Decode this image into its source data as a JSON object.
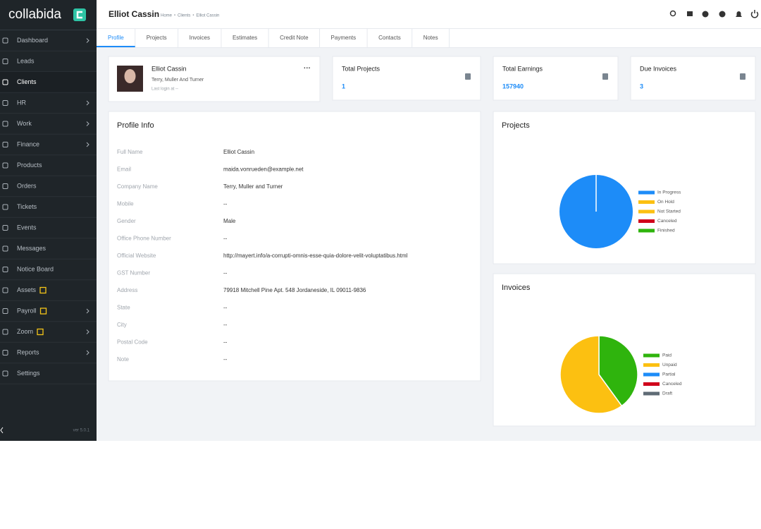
{
  "sidebar": {
    "brand": "collabida",
    "menu": [
      {
        "label": "Dashboard",
        "expandable": true
      },
      {
        "label": "Leads"
      },
      {
        "label": "Clients",
        "active": true
      },
      {
        "label": "HR",
        "expandable": true
      },
      {
        "label": "Work",
        "expandable": true
      },
      {
        "label": "Finance",
        "expandable": true
      },
      {
        "label": "Products"
      },
      {
        "label": "Orders"
      },
      {
        "label": "Tickets"
      },
      {
        "label": "Events"
      },
      {
        "label": "Messages"
      },
      {
        "label": "Notice Board"
      },
      {
        "label": "Assets",
        "badge": "gift"
      },
      {
        "label": "Payroll",
        "badge": "gift",
        "expandable": true
      },
      {
        "label": "Zoom",
        "badge": "gift",
        "expandable": true
      },
      {
        "label": "Reports",
        "expandable": true
      },
      {
        "label": "Settings"
      }
    ],
    "version": "ver 5.0.1"
  },
  "header": {
    "title": "Elliot Cassin",
    "breadcrumb": [
      "Home",
      "Clients",
      "Elliot Cassin"
    ]
  },
  "tabs": [
    "Profile",
    "Projects",
    "Invoices",
    "Estimates",
    "Credit Note",
    "Payments",
    "Contacts",
    "Notes"
  ],
  "client_card": {
    "name": "Elliot Cassin",
    "company": "Terry, Muller And Turner",
    "last_login": "Last login at --"
  },
  "stats": [
    {
      "label": "Total Projects",
      "value": 1
    },
    {
      "label": "Total Earnings",
      "value": 157940
    },
    {
      "label": "Due Invoices",
      "value": 3
    }
  ],
  "profile_info": {
    "title": "Profile Info",
    "fields": [
      {
        "label": "Full Name",
        "value": "Elliot Cassin"
      },
      {
        "label": "Email",
        "value": "maida.vonrueden@example.net"
      },
      {
        "label": "Company Name",
        "value": "Terry, Muller and Turner"
      },
      {
        "label": "Mobile",
        "value": "--"
      },
      {
        "label": "Gender",
        "value": "Male"
      },
      {
        "label": "Office Phone Number",
        "value": "--"
      },
      {
        "label": "Official Website",
        "value": "http://mayert.info/a-corrupti-omnis-esse-quia-dolore-velit-voluptatibus.html"
      },
      {
        "label": "GST Number",
        "value": "--"
      },
      {
        "label": "Address",
        "value": "79918 Mitchell Pine Apt. 548 Jordaneside, IL 09011-9836"
      },
      {
        "label": "State",
        "value": "--"
      },
      {
        "label": "City",
        "value": "--"
      },
      {
        "label": "Postal Code",
        "value": "--"
      },
      {
        "label": "Note",
        "value": "--"
      }
    ]
  },
  "chart_data": [
    {
      "type": "pie",
      "title": "Projects",
      "categories": [
        "In Progress",
        "On Hold",
        "Not Started",
        "Canceled",
        "Finished"
      ],
      "colors": [
        "#1d8cf8",
        "#fcc011",
        "#fcc011",
        "#d0021b",
        "#2fb40d"
      ],
      "values": [
        100,
        0,
        0,
        0,
        0
      ]
    },
    {
      "type": "pie",
      "title": "Invoices",
      "categories": [
        "Paid",
        "Unpaid",
        "Partial",
        "Canceled",
        "Draft"
      ],
      "colors": [
        "#2fb40d",
        "#fcc011",
        "#1d8cf8",
        "#d0021b",
        "#5f6b75"
      ],
      "values": [
        40,
        60,
        0,
        0,
        0
      ]
    }
  ]
}
